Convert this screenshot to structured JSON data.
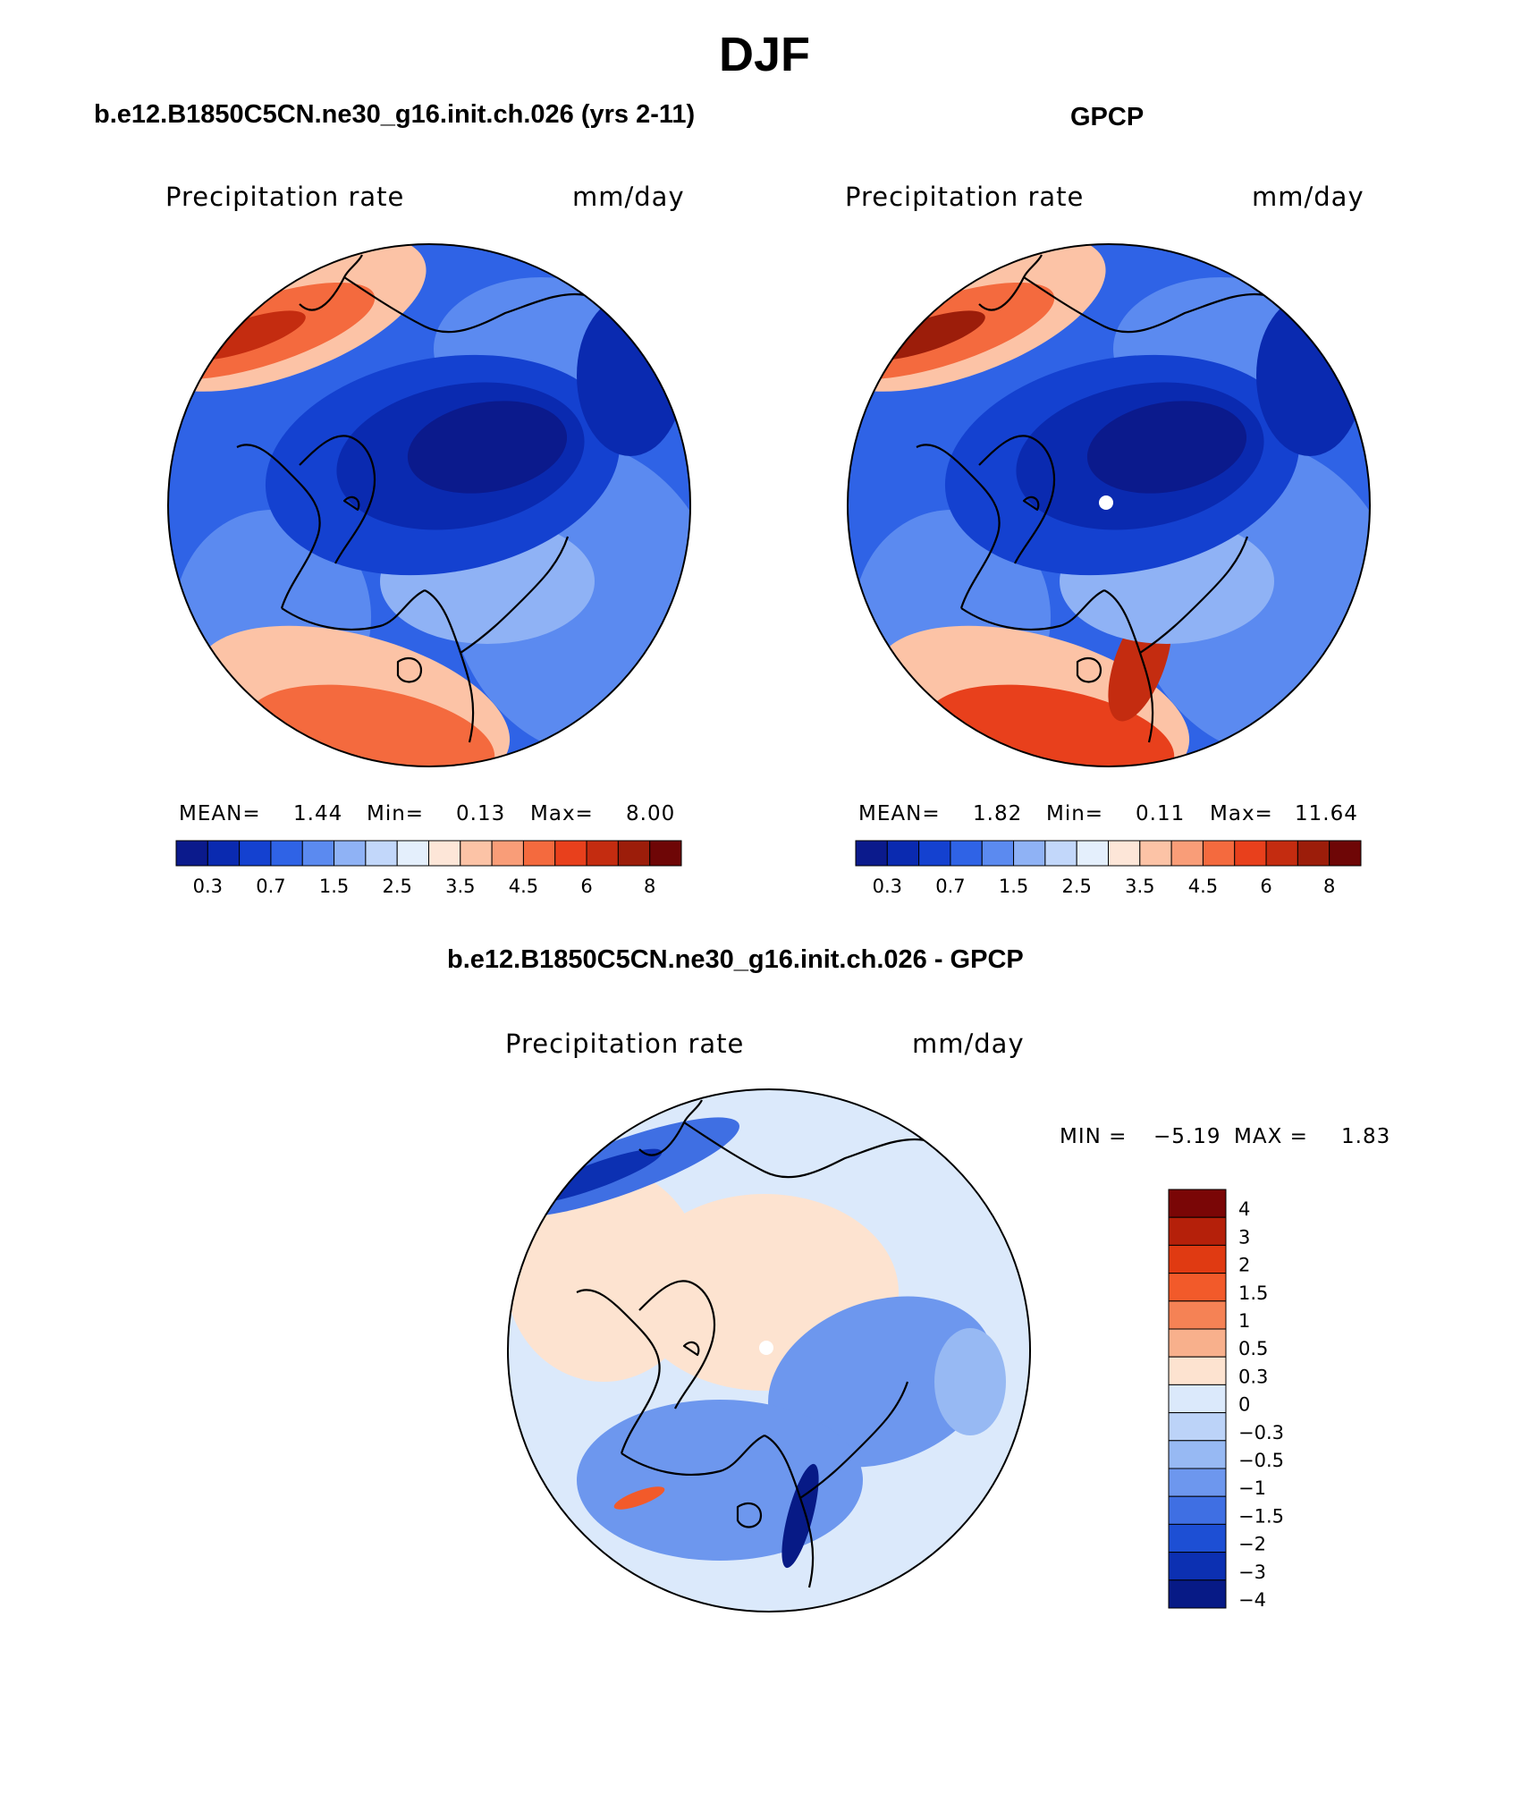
{
  "figure": {
    "title": "DJF",
    "top_left_title": "b.e12.B1850C5CN.ne30_g16.init.ch.026 (yrs 2-11)",
    "top_right_title": "GPCP",
    "bottom_title": "b.e12.B1850C5CN.ne30_g16.init.ch.026 - GPCP"
  },
  "chart_data": [
    {
      "type": "heatmap",
      "projection": "north polar stereographic",
      "panel": "model",
      "variable_label": "Precipitation rate",
      "units": "mm/day",
      "stats": {
        "mean_label": "MEAN=",
        "mean": "1.44",
        "min_label": "Min=",
        "min": "0.13",
        "max_label": "Max=",
        "max": "8.00"
      },
      "colorbar": {
        "orientation": "horizontal",
        "colors": [
          "#0b1a8c",
          "#0a2ab0",
          "#1441d0",
          "#2f63e6",
          "#5b8af0",
          "#8fb2f5",
          "#c2d7fa",
          "#e4effc",
          "#fde6d8",
          "#fcc3a6",
          "#f99d78",
          "#f46a3e",
          "#e8401c",
          "#c42c10",
          "#9c1d0a",
          "#6e0606"
        ],
        "ticks": [
          "0.3",
          "0.7",
          "1.5",
          "2.5",
          "3.5",
          "4.5",
          "6",
          "8"
        ]
      }
    },
    {
      "type": "heatmap",
      "projection": "north polar stereographic",
      "panel": "observations",
      "variable_label": "Precipitation rate",
      "units": "mm/day",
      "stats": {
        "mean_label": "MEAN=",
        "mean": "1.82",
        "min_label": "Min=",
        "min": "0.11",
        "max_label": "Max=",
        "max": "11.64"
      },
      "colorbar": {
        "orientation": "horizontal",
        "colors": [
          "#0b1a8c",
          "#0a2ab0",
          "#1441d0",
          "#2f63e6",
          "#5b8af0",
          "#8fb2f5",
          "#c2d7fa",
          "#e4effc",
          "#fde6d8",
          "#fcc3a6",
          "#f99d78",
          "#f46a3e",
          "#e8401c",
          "#c42c10",
          "#9c1d0a",
          "#6e0606"
        ],
        "ticks": [
          "0.3",
          "0.7",
          "1.5",
          "2.5",
          "3.5",
          "4.5",
          "6",
          "8"
        ]
      }
    },
    {
      "type": "heatmap",
      "projection": "north polar stereographic",
      "panel": "difference",
      "variable_label": "Precipitation rate",
      "units": "mm/day",
      "stats": {
        "min_label": "MIN =",
        "min": "−5.19",
        "max_label": "MAX =",
        "max": "1.83"
      },
      "colorbar": {
        "orientation": "vertical",
        "colors_top_to_bottom": [
          "#7a0606",
          "#b5200a",
          "#e03a12",
          "#f25a2a",
          "#f58255",
          "#f8b08c",
          "#fde3d0",
          "#dbe9fb",
          "#bcd3f8",
          "#97b9f3",
          "#6d97ee",
          "#3f6fe3",
          "#1d4fd4",
          "#0c30b2",
          "#071a86"
        ],
        "ticks": [
          "4",
          "3",
          "2",
          "1.5",
          "1",
          "0.5",
          "0.3",
          "0",
          "−0.3",
          "−0.5",
          "−1",
          "−1.5",
          "−2",
          "−3",
          "−4"
        ]
      }
    }
  ]
}
